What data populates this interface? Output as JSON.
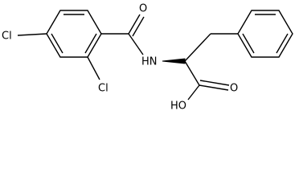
{
  "atoms": [
    {
      "label": "Cl"
    },
    {
      "label": "Cl"
    },
    {
      "label": "O"
    },
    {
      "label": "HN"
    },
    {
      "label": "HO"
    },
    {
      "label": "O"
    }
  ]
}
